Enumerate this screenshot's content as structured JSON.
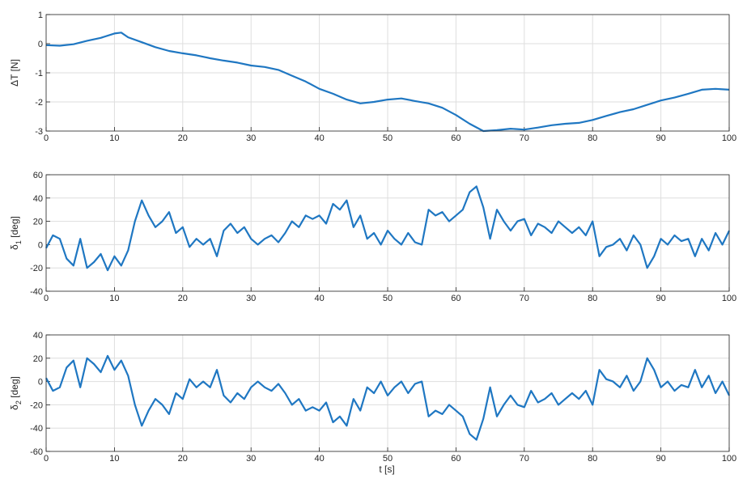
{
  "figure": {
    "xlabel": "t [s]"
  },
  "chart_data": [
    {
      "type": "line",
      "ylabel": "ΔT [N]",
      "ylabel_sub": "",
      "ylabel_suffix": "",
      "xlim": [
        0,
        100
      ],
      "ylim": [
        -3,
        1
      ],
      "xticks": [
        0,
        10,
        20,
        30,
        40,
        50,
        60,
        70,
        80,
        90,
        100
      ],
      "yticks": [
        -3,
        -2,
        -1,
        0,
        1
      ],
      "grid": true,
      "line_color": "#1f77c2",
      "series": [
        {
          "x": [
            0,
            2,
            4,
            6,
            8,
            10,
            11,
            12,
            14,
            16,
            18,
            20,
            22,
            24,
            26,
            28,
            30,
            32,
            34,
            36,
            38,
            40,
            42,
            44,
            46,
            48,
            50,
            52,
            54,
            56,
            58,
            60,
            62,
            64,
            66,
            68,
            70,
            72,
            74,
            76,
            78,
            80,
            82,
            84,
            86,
            88,
            90,
            92,
            94,
            96,
            98,
            100
          ],
          "y": [
            -0.05,
            -0.07,
            -0.02,
            0.1,
            0.2,
            0.35,
            0.38,
            0.22,
            0.05,
            -0.12,
            -0.25,
            -0.33,
            -0.4,
            -0.5,
            -0.58,
            -0.65,
            -0.75,
            -0.8,
            -0.9,
            -1.1,
            -1.3,
            -1.55,
            -1.72,
            -1.92,
            -2.05,
            -2.0,
            -1.92,
            -1.88,
            -1.97,
            -2.05,
            -2.2,
            -2.45,
            -2.75,
            -3.0,
            -2.97,
            -2.92,
            -2.95,
            -2.88,
            -2.8,
            -2.75,
            -2.72,
            -2.62,
            -2.48,
            -2.35,
            -2.25,
            -2.1,
            -1.95,
            -1.85,
            -1.72,
            -1.58,
            -1.55,
            -1.58
          ]
        }
      ]
    },
    {
      "type": "line",
      "ylabel": "δ",
      "ylabel_sub": "1",
      "ylabel_suffix": " [deg]",
      "xlim": [
        0,
        100
      ],
      "ylim": [
        -40,
        60
      ],
      "xticks": [
        0,
        10,
        20,
        30,
        40,
        50,
        60,
        70,
        80,
        90,
        100
      ],
      "yticks": [
        -40,
        -20,
        0,
        20,
        40,
        60
      ],
      "grid": true,
      "line_color": "#1f77c2",
      "series": [
        {
          "x": [
            0,
            1,
            2,
            3,
            4,
            5,
            6,
            7,
            8,
            9,
            10,
            11,
            12,
            13,
            14,
            15,
            16,
            17,
            18,
            19,
            20,
            21,
            22,
            23,
            24,
            25,
            26,
            27,
            28,
            29,
            30,
            31,
            32,
            33,
            34,
            35,
            36,
            37,
            38,
            39,
            40,
            41,
            42,
            43,
            44,
            45,
            46,
            47,
            48,
            49,
            50,
            51,
            52,
            53,
            54,
            55,
            56,
            57,
            58,
            59,
            60,
            61,
            62,
            63,
            64,
            65,
            66,
            67,
            68,
            69,
            70,
            71,
            72,
            73,
            74,
            75,
            76,
            77,
            78,
            79,
            80,
            81,
            82,
            83,
            84,
            85,
            86,
            87,
            88,
            89,
            90,
            91,
            92,
            93,
            94,
            95,
            96,
            97,
            98,
            99,
            100
          ],
          "y": [
            -3,
            8,
            5,
            -12,
            -18,
            5,
            -20,
            -15,
            -8,
            -22,
            -10,
            -18,
            -5,
            20,
            38,
            25,
            15,
            20,
            28,
            10,
            15,
            -2,
            5,
            0,
            5,
            -10,
            12,
            18,
            10,
            15,
            5,
            0,
            5,
            8,
            2,
            10,
            20,
            15,
            25,
            22,
            25,
            18,
            35,
            30,
            38,
            15,
            25,
            5,
            10,
            0,
            12,
            5,
            0,
            10,
            2,
            0,
            30,
            25,
            28,
            20,
            25,
            30,
            45,
            50,
            32,
            5,
            30,
            20,
            12,
            20,
            22,
            8,
            18,
            15,
            10,
            20,
            15,
            10,
            15,
            8,
            20,
            -10,
            -2,
            0,
            5,
            -5,
            8,
            0,
            -20,
            -10,
            5,
            0,
            8,
            3,
            5,
            -10,
            5,
            -5,
            10,
            0,
            12
          ]
        }
      ]
    },
    {
      "type": "line",
      "ylabel": "δ",
      "ylabel_sub": "2",
      "ylabel_suffix": " [deg]",
      "xlim": [
        0,
        100
      ],
      "ylim": [
        -60,
        40
      ],
      "xticks": [
        0,
        10,
        20,
        30,
        40,
        50,
        60,
        70,
        80,
        90,
        100
      ],
      "yticks": [
        -60,
        -40,
        -20,
        0,
        20,
        40
      ],
      "grid": true,
      "line_color": "#1f77c2",
      "series": [
        {
          "x": [
            0,
            1,
            2,
            3,
            4,
            5,
            6,
            7,
            8,
            9,
            10,
            11,
            12,
            13,
            14,
            15,
            16,
            17,
            18,
            19,
            20,
            21,
            22,
            23,
            24,
            25,
            26,
            27,
            28,
            29,
            30,
            31,
            32,
            33,
            34,
            35,
            36,
            37,
            38,
            39,
            40,
            41,
            42,
            43,
            44,
            45,
            46,
            47,
            48,
            49,
            50,
            51,
            52,
            53,
            54,
            55,
            56,
            57,
            58,
            59,
            60,
            61,
            62,
            63,
            64,
            65,
            66,
            67,
            68,
            69,
            70,
            71,
            72,
            73,
            74,
            75,
            76,
            77,
            78,
            79,
            80,
            81,
            82,
            83,
            84,
            85,
            86,
            87,
            88,
            89,
            90,
            91,
            92,
            93,
            94,
            95,
            96,
            97,
            98,
            99,
            100
          ],
          "y": [
            3,
            -8,
            -5,
            12,
            18,
            -5,
            20,
            15,
            8,
            22,
            10,
            18,
            5,
            -20,
            -38,
            -25,
            -15,
            -20,
            -28,
            -10,
            -15,
            2,
            -5,
            0,
            -5,
            10,
            -12,
            -18,
            -10,
            -15,
            -5,
            0,
            -5,
            -8,
            -2,
            -10,
            -20,
            -15,
            -25,
            -22,
            -25,
            -18,
            -35,
            -30,
            -38,
            -15,
            -25,
            -5,
            -10,
            0,
            -12,
            -5,
            0,
            -10,
            -2,
            0,
            -30,
            -25,
            -28,
            -20,
            -25,
            -30,
            -45,
            -50,
            -32,
            -5,
            -30,
            -20,
            -12,
            -20,
            -22,
            -8,
            -18,
            -15,
            -10,
            -20,
            -15,
            -10,
            -15,
            -8,
            -20,
            10,
            2,
            0,
            -5,
            5,
            -8,
            0,
            20,
            10,
            -5,
            0,
            -8,
            -3,
            -5,
            10,
            -5,
            5,
            -10,
            0,
            -12
          ]
        }
      ]
    }
  ]
}
